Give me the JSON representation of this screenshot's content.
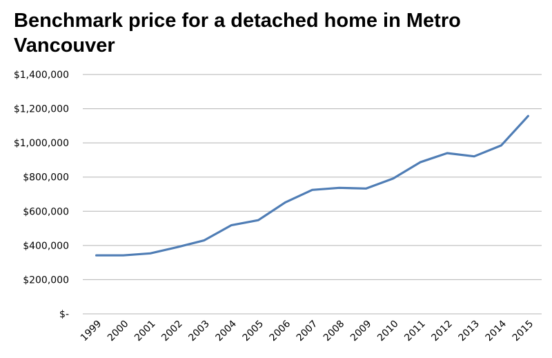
{
  "title": "Benchmark price for a detached home in Metro Vancouver",
  "chart_data": {
    "type": "line",
    "title": "Benchmark price for a detached home in Metro Vancouver",
    "xlabel": "",
    "ylabel": "",
    "categories": [
      "1999",
      "2000",
      "2001",
      "2002",
      "2003",
      "2004",
      "2005",
      "2006",
      "2007",
      "2008",
      "2009",
      "2010",
      "2011",
      "2012",
      "2013",
      "2014",
      "2015"
    ],
    "values": [
      342000,
      342000,
      354000,
      390000,
      430000,
      518000,
      548000,
      652000,
      725000,
      737000,
      733000,
      792000,
      887000,
      940000,
      921000,
      985000,
      1157000
    ],
    "ylim": [
      0,
      1400000
    ],
    "yticks": [
      {
        "value": 0,
        "label": "$-"
      },
      {
        "value": 200000,
        "label": "$200,000"
      },
      {
        "value": 400000,
        "label": "$400,000"
      },
      {
        "value": 600000,
        "label": "$600,000"
      },
      {
        "value": 800000,
        "label": "$800,000"
      },
      {
        "value": 1000000,
        "label": "$1,000,000"
      },
      {
        "value": 1200000,
        "label": "$1,200,000"
      },
      {
        "value": 1400000,
        "label": "$1,400,000"
      }
    ],
    "grid": true,
    "legend": "none",
    "line_color": "#4f7db5",
    "grid_color": "#b3b3b3"
  }
}
